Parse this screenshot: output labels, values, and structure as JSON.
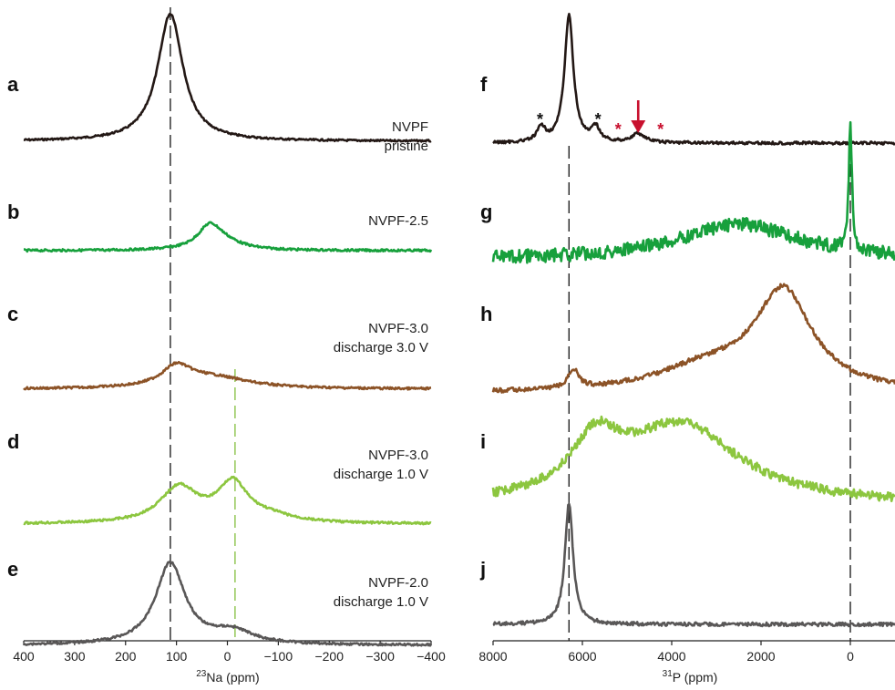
{
  "chart_data": [
    {
      "type": "line",
      "panel": "left",
      "xlabel_sup": "23",
      "xlabel": "Na (ppm)",
      "xlim": [
        400,
        -400
      ],
      "ticks": [
        "400",
        "300",
        "200",
        "100",
        "0",
        "−100",
        "−200",
        "−300",
        "−400"
      ],
      "tick_values": [
        400,
        300,
        200,
        100,
        0,
        -100,
        -200,
        -300,
        -400
      ],
      "reference_lines": [
        {
          "x": 112,
          "color": "#222222"
        },
        {
          "x": -15,
          "color": "#8bc34a"
        }
      ],
      "series": [
        {
          "letter": "a",
          "label_lines": [
            "NVPF",
            "pristine"
          ],
          "color": "#231815",
          "peaks": [
            {
              "center": 112,
              "height": 1.0,
              "width": 30
            }
          ]
        },
        {
          "letter": "b",
          "label_lines": [
            "NVPF-2.5"
          ],
          "color": "#17a03c",
          "peaks": [
            {
              "center": 35,
              "height": 0.17,
              "width": 28
            },
            {
              "center": 10,
              "height": 0.06,
              "width": 45
            }
          ]
        },
        {
          "letter": "c",
          "label_lines": [
            "NVPF-3.0",
            "discharge 3.0 V"
          ],
          "color": "#8c5327",
          "peaks": [
            {
              "center": 100,
              "height": 0.15,
              "width": 35
            },
            {
              "center": 30,
              "height": 0.09,
              "width": 90
            }
          ]
        },
        {
          "letter": "d",
          "label_lines": [
            "NVPF-3.0",
            "discharge 1.0 V"
          ],
          "color": "#8cc63f",
          "peaks": [
            {
              "center": 95,
              "height": 0.28,
              "width": 45
            },
            {
              "center": -10,
              "height": 0.3,
              "width": 35
            },
            {
              "center": -80,
              "height": 0.05,
              "width": 60
            }
          ]
        },
        {
          "letter": "e",
          "label_lines": [
            "NVPF-2.0",
            "discharge 1.0 V"
          ],
          "color": "#595757",
          "peaks": [
            {
              "center": 112,
              "height": 0.64,
              "width": 35
            },
            {
              "center": -10,
              "height": 0.1,
              "width": 50
            }
          ]
        }
      ]
    },
    {
      "type": "line",
      "panel": "right",
      "xlabel_sup": "31",
      "xlabel": "P (ppm)",
      "xlim": [
        8000,
        -1000
      ],
      "ticks": [
        "8000",
        "6000",
        "4000",
        "2000",
        "0"
      ],
      "tick_values": [
        8000,
        6000,
        4000,
        2000,
        0
      ],
      "reference_lines": [
        {
          "x": 6300,
          "color": "#222222"
        },
        {
          "x": 0,
          "color": "#222222"
        }
      ],
      "annotations": [
        {
          "type": "asterisk",
          "x": 6950,
          "text": "*",
          "color": "#111111"
        },
        {
          "type": "asterisk",
          "x": 5650,
          "text": "*",
          "color": "#111111"
        },
        {
          "type": "asterisk",
          "x": 5200,
          "text": "*",
          "color": "#c8102e"
        },
        {
          "type": "asterisk",
          "x": 4250,
          "text": "*",
          "color": "#c8102e"
        },
        {
          "type": "arrow",
          "x": 4750,
          "color": "#c8102e"
        }
      ],
      "series": [
        {
          "letter": "f",
          "color": "#231815",
          "peaks": [
            {
              "center": 6300,
              "height": 1.0,
              "width": 120
            },
            {
              "center": 6920,
              "height": 0.11,
              "width": 110
            },
            {
              "center": 5700,
              "height": 0.11,
              "width": 110
            },
            {
              "center": 4750,
              "height": 0.07,
              "width": 180
            }
          ]
        },
        {
          "letter": "g",
          "color": "#17a03c",
          "peaks": [
            {
              "center": 2500,
              "height": 0.28,
              "width": 1600
            },
            {
              "center": 0,
              "height": 0.95,
              "width": 45
            }
          ]
        },
        {
          "letter": "h",
          "color": "#8c5327",
          "peaks": [
            {
              "center": 1500,
              "height": 0.77,
              "width": 780
            },
            {
              "center": 3200,
              "height": 0.18,
              "width": 1400
            },
            {
              "center": 6200,
              "height": 0.15,
              "width": 130
            }
          ]
        },
        {
          "letter": "i",
          "color": "#8cc63f",
          "peaks": [
            {
              "center": 3800,
              "height": 0.62,
              "width": 1600
            },
            {
              "center": 5700,
              "height": 0.4,
              "width": 650
            }
          ]
        },
        {
          "letter": "j",
          "color": "#595757",
          "peaks": [
            {
              "center": 6300,
              "height": 0.95,
              "width": 110
            }
          ]
        }
      ]
    }
  ]
}
